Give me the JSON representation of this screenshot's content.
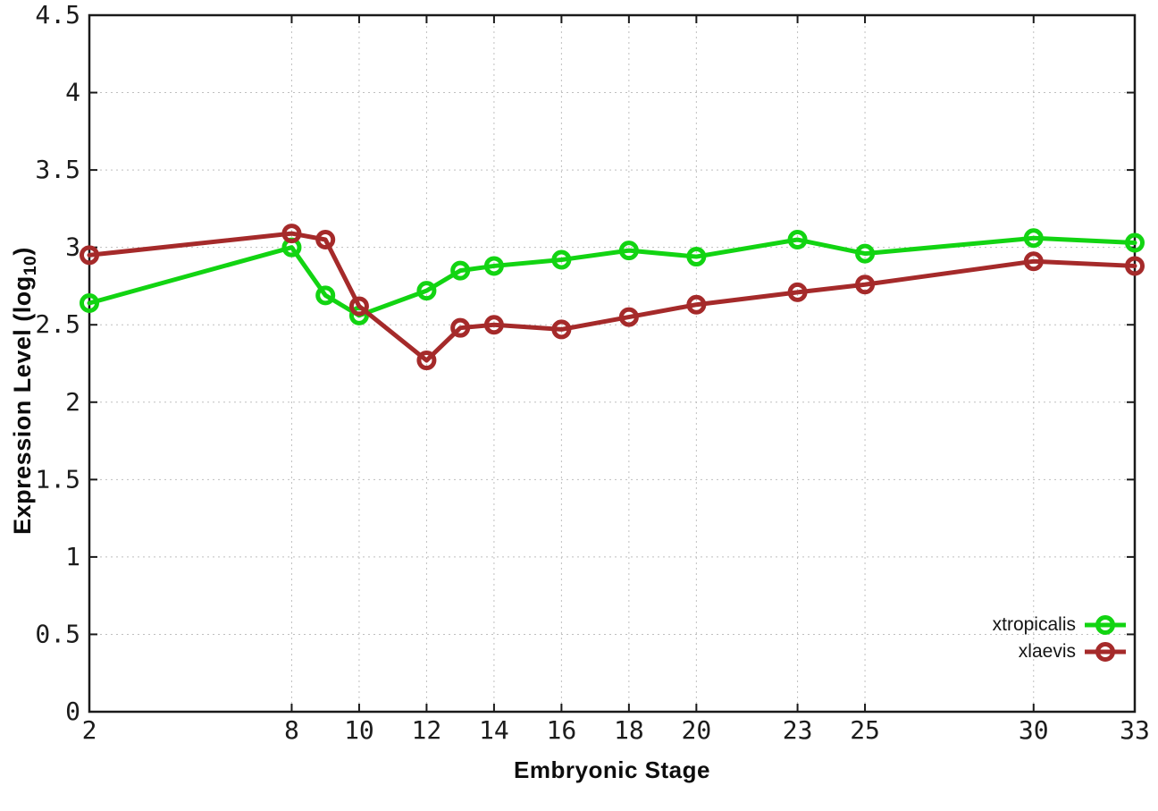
{
  "figure": {
    "ylabel_prefix": "Expression Level (log",
    "ylabel_sub": "10",
    "ylabel_suffix": ")"
  },
  "chart_data": {
    "type": "line",
    "title": "",
    "xlabel": "Embryonic Stage",
    "ylabel": "Expression Level (log10)",
    "x": [
      2,
      8,
      9,
      10,
      12,
      13,
      14,
      16,
      18,
      20,
      23,
      25,
      30,
      33
    ],
    "series": [
      {
        "name": "xtropicalis",
        "color": "#12d412",
        "values": [
          2.64,
          3.0,
          2.69,
          2.56,
          2.72,
          2.85,
          2.88,
          2.92,
          2.98,
          2.94,
          3.05,
          2.96,
          3.06,
          3.03
        ]
      },
      {
        "name": "xlaevis",
        "color": "#a52a2a",
        "values": [
          2.95,
          3.09,
          3.05,
          2.62,
          2.27,
          2.48,
          2.5,
          2.47,
          2.55,
          2.63,
          2.71,
          2.76,
          2.91,
          2.88
        ]
      }
    ],
    "xlim": [
      2,
      33
    ],
    "ylim": [
      0,
      4.5
    ],
    "xticks": [
      2,
      8,
      10,
      12,
      14,
      16,
      18,
      20,
      23,
      25,
      30,
      33
    ],
    "yticks": [
      0,
      0.5,
      1,
      1.5,
      2,
      2.5,
      3,
      3.5,
      4,
      4.5
    ],
    "ytick_labels": [
      "0",
      "0.5",
      "1",
      "1.5",
      "2",
      "2.5",
      "3",
      "3.5",
      "4",
      "4.5"
    ],
    "grid": "dotted",
    "legend_position": "bottom-right-inside",
    "marker": "open-circle",
    "frame_color": "#1a1a1a",
    "grid_color": "#bfbfbf"
  }
}
